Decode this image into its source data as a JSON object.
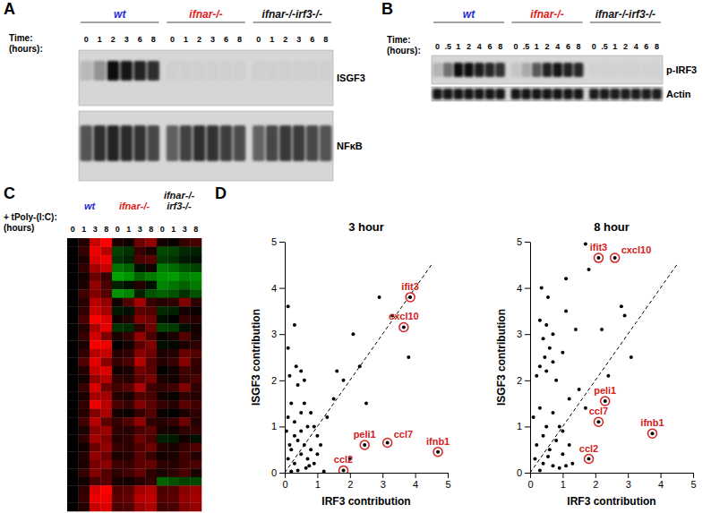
{
  "chart_data": [
    {
      "type": "gel",
      "panel": "A",
      "time_label": [
        "Time:",
        "(hours):"
      ],
      "genotypes": [
        {
          "name": "wt",
          "color": "#2a2ad8"
        },
        {
          "name": "ifnar-/-",
          "color": "#e02020"
        },
        {
          "name": "ifnar-/-irf3-/-",
          "color": "#111111"
        }
      ],
      "times": [
        0,
        1,
        2,
        3,
        6,
        8
      ],
      "blots": [
        {
          "name": "ISGF3",
          "values": [
            0.12,
            0.28,
            0.85,
            0.8,
            0.75,
            0.7,
            0.03,
            0.03,
            0.03,
            0.03,
            0.03,
            0.03,
            0.03,
            0.03,
            0.03,
            0.03,
            0.03,
            0.03
          ]
        },
        {
          "name": "NFκB",
          "values": [
            0.55,
            0.7,
            0.75,
            0.72,
            0.68,
            0.6,
            0.5,
            0.62,
            0.7,
            0.68,
            0.64,
            0.58,
            0.48,
            0.6,
            0.66,
            0.65,
            0.6,
            0.55
          ]
        }
      ]
    },
    {
      "type": "gel",
      "panel": "B",
      "time_label": [
        "Time:",
        "(hours):"
      ],
      "genotypes": [
        {
          "name": "wt",
          "color": "#2a2ad8"
        },
        {
          "name": "ifnar-/-",
          "color": "#e02020"
        },
        {
          "name": "ifnar-/-irf3-/-",
          "color": "#111111"
        }
      ],
      "times": [
        0,
        {
          "value": 0.5,
          "label": ".5"
        },
        1,
        2,
        4,
        6,
        8
      ],
      "blots": [
        {
          "name": "p-IRF3",
          "values": [
            0.15,
            0.45,
            0.9,
            0.88,
            0.82,
            0.78,
            0.72,
            0.08,
            0.2,
            0.55,
            0.8,
            0.85,
            0.8,
            0.78,
            0.02,
            0.02,
            0.02,
            0.02,
            0.02,
            0.02,
            0.02
          ]
        },
        {
          "name": "Actin",
          "values": [
            0.85,
            0.86,
            0.84,
            0.85,
            0.86,
            0.84,
            0.85,
            0.84,
            0.85,
            0.86,
            0.85,
            0.84,
            0.85,
            0.86,
            0.82,
            0.83,
            0.82,
            0.81,
            0.82,
            0.83,
            0.82
          ]
        }
      ]
    },
    {
      "type": "heatmap",
      "panel": "C",
      "treatment_label": [
        "+ tPoly-(I:C):",
        "(hours)"
      ],
      "genotypes": [
        {
          "name": [
            "wt"
          ],
          "color": "#2a2ad8"
        },
        {
          "name": [
            "ifnar-/-"
          ],
          "color": "#e02020"
        },
        {
          "name": [
            "ifnar-/-",
            "irf3-/-"
          ],
          "color": "#111111"
        }
      ],
      "times": [
        0,
        1,
        3,
        8
      ],
      "cells": [
        [
          0,
          0.4,
          2.2,
          2.8,
          0.3,
          0.2,
          1.2,
          1.6,
          0.2,
          0.1,
          0.6,
          0.8
        ],
        [
          0,
          0.6,
          2.6,
          2.0,
          -0.8,
          -0.6,
          0.6,
          0.3,
          -0.9,
          -0.8,
          -0.5,
          -0.4
        ],
        [
          0,
          0.3,
          2.4,
          2.6,
          -0.6,
          -0.4,
          0.8,
          1.0,
          -0.7,
          -0.6,
          -0.3,
          -0.2
        ],
        [
          0,
          0.5,
          1.8,
          2.2,
          -1.4,
          -1.2,
          -0.2,
          0.2,
          -1.5,
          -1.3,
          -1.0,
          -0.8
        ],
        [
          0,
          0.2,
          1.2,
          0.6,
          -2.0,
          -1.8,
          -1.2,
          -1.5,
          -1.8,
          -1.9,
          -1.6,
          -1.7
        ],
        [
          0,
          0.3,
          1.6,
          0.8,
          -0.4,
          -0.2,
          0.4,
          -0.2,
          -1.6,
          -1.4,
          -1.2,
          -1.5
        ],
        [
          0,
          0.7,
          1.4,
          0.9,
          -1.8,
          -1.6,
          -0.4,
          -1.0,
          -1.2,
          -1.0,
          -0.6,
          -1.0
        ],
        [
          0,
          0.4,
          2.0,
          1.6,
          0.2,
          0.9,
          1.8,
          0.6,
          0.4,
          0.5,
          1.4,
          0.5
        ],
        [
          0,
          0.5,
          2.2,
          1.8,
          -0.3,
          -0.2,
          1.0,
          0.9,
          -0.5,
          -0.4,
          0.2,
          0.1
        ],
        [
          0,
          0.8,
          2.8,
          2.4,
          0.2,
          0.4,
          1.4,
          1.2,
          -0.2,
          0.0,
          0.6,
          0.4
        ],
        [
          0,
          0.4,
          1.9,
          2.5,
          -0.6,
          -0.5,
          0.5,
          1.2,
          -0.8,
          -0.7,
          -0.2,
          0.2
        ],
        [
          0,
          0.6,
          2.3,
          1.4,
          0.3,
          0.6,
          1.6,
          0.8,
          0.1,
          0.3,
          0.9,
          0.3
        ],
        [
          0,
          0.3,
          2.7,
          2.6,
          0.0,
          0.2,
          1.0,
          1.4,
          -0.2,
          -0.1,
          0.3,
          0.5
        ],
        [
          0,
          0.5,
          2.0,
          2.2,
          0.4,
          0.5,
          1.5,
          1.2,
          0.3,
          0.4,
          1.1,
          0.9
        ],
        [
          0,
          0.9,
          2.5,
          1.5,
          0.6,
          0.8,
          2.0,
          0.9,
          0.4,
          0.6,
          1.5,
          0.6
        ],
        [
          0,
          0.4,
          2.2,
          2.4,
          0.2,
          0.3,
          1.2,
          1.0,
          0.0,
          0.2,
          0.7,
          0.5
        ],
        [
          0,
          0.2,
          1.6,
          2.0,
          0.5,
          0.4,
          1.0,
          1.3,
          0.3,
          0.2,
          0.6,
          0.8
        ],
        [
          0,
          0.6,
          2.4,
          1.2,
          0.7,
          1.0,
          1.9,
          0.7,
          0.5,
          0.7,
          1.4,
          0.5
        ],
        [
          0,
          0.3,
          1.8,
          1.8,
          0.4,
          0.3,
          0.9,
          0.8,
          0.2,
          0.1,
          0.5,
          0.4
        ],
        [
          0,
          0.5,
          2.6,
          2.0,
          0.8,
          0.6,
          1.4,
          1.0,
          0.6,
          0.4,
          1.0,
          0.7
        ],
        [
          0,
          0.4,
          1.4,
          1.9,
          0.2,
          0.1,
          0.6,
          0.9,
          0.1,
          0.0,
          0.3,
          0.5
        ],
        [
          0,
          0.7,
          2.0,
          1.0,
          0.6,
          0.9,
          1.6,
          0.5,
          0.4,
          0.6,
          1.2,
          0.4
        ],
        [
          0,
          0.3,
          1.5,
          1.7,
          0.5,
          0.4,
          0.8,
          1.0,
          0.3,
          0.2,
          0.5,
          0.6
        ],
        [
          0,
          0.5,
          1.8,
          1.4,
          0.4,
          0.5,
          1.2,
          0.8,
          -0.4,
          -0.3,
          0.2,
          -0.2
        ],
        [
          0,
          0.2,
          1.2,
          1.6,
          0.6,
          0.5,
          0.9,
          1.2,
          0.4,
          0.3,
          0.6,
          0.9
        ],
        [
          0,
          0.4,
          1.6,
          1.2,
          0.3,
          0.4,
          1.0,
          0.6,
          0.2,
          0.3,
          0.7,
          0.4
        ],
        [
          0,
          0.3,
          1.3,
          1.5,
          0.7,
          0.6,
          1.0,
          1.1,
          0.5,
          0.4,
          0.7,
          0.8
        ],
        [
          0,
          0.6,
          1.4,
          0.9,
          0.5,
          0.7,
          1.1,
          0.5,
          0.3,
          0.5,
          0.8,
          0.3
        ],
        [
          0,
          0.2,
          0.8,
          1.0,
          0.3,
          0.2,
          0.4,
          0.6,
          -1.2,
          -1.0,
          -0.8,
          -0.9
        ],
        [
          0,
          0.5,
          2.4,
          2.8,
          0.9,
          1.0,
          1.8,
          2.0,
          0.8,
          0.9,
          1.5,
          1.7
        ],
        [
          0,
          0.6,
          2.6,
          2.6,
          1.0,
          1.1,
          2.0,
          2.1,
          0.9,
          1.0,
          1.6,
          1.8
        ],
        [
          0,
          0.4,
          2.2,
          2.4,
          0.8,
          0.9,
          1.7,
          1.9,
          0.7,
          0.8,
          1.4,
          1.6
        ]
      ]
    },
    {
      "type": "scatter",
      "panel": "D",
      "title": "3 hour",
      "x_label": "IRF3 contribution",
      "y_label": "ISGF3 contribution",
      "xlim": [
        0,
        5
      ],
      "ylim": [
        0,
        5
      ],
      "xticks": [
        0,
        1,
        2,
        3,
        4,
        5
      ],
      "yticks": [
        0,
        1,
        2,
        3,
        4,
        5
      ],
      "marker": "circle",
      "color": "#000000",
      "line_style": "dashed",
      "diagonal": [
        0,
        4.5
      ],
      "x": [
        0.1,
        0.1,
        0.3,
        0.35,
        0.15,
        0.5,
        0.6,
        0.4,
        0.2,
        0.1,
        0.3,
        0.05,
        0.6,
        0.5,
        0.7,
        0.8,
        0.4,
        0.2,
        0.1,
        0.3,
        0.5,
        0.6,
        0.7,
        0.8,
        0.9,
        1.0,
        1.1,
        0.9,
        1.3,
        1.5,
        1.6,
        1.8,
        2.1,
        2.3,
        2.5,
        3.3,
        2.9,
        3.8,
        2.0,
        1.2,
        0.4,
        0.65,
        0.2,
        0.75,
        1.0,
        0.5,
        0.3,
        0.15,
        3.85,
        3.65,
        2.45,
        3.15,
        1.8,
        4.7
      ],
      "values": [
        3.6,
        2.7,
        3.2,
        2.3,
        2.1,
        2.2,
        2.0,
        1.9,
        1.5,
        1.2,
        1.1,
        0.9,
        1.5,
        1.3,
        1.0,
        1.3,
        0.7,
        0.5,
        0.3,
        0.2,
        0.4,
        0.6,
        0.3,
        0.5,
        0.2,
        0.8,
        0.6,
        1.0,
        1.2,
        1.6,
        2.2,
        2.0,
        3.0,
        2.3,
        1.5,
        3.4,
        3.8,
        2.5,
        0.3,
        0.03,
        0.05,
        0.1,
        0.03,
        0.15,
        0.4,
        0.9,
        0.8,
        0.6,
        3.8,
        3.15,
        0.6,
        0.65,
        0.05,
        0.45
      ],
      "point_labels": [
        null,
        null,
        null,
        null,
        null,
        null,
        null,
        null,
        null,
        null,
        null,
        null,
        null,
        null,
        null,
        null,
        null,
        null,
        null,
        null,
        null,
        null,
        null,
        null,
        null,
        null,
        null,
        null,
        null,
        null,
        null,
        null,
        null,
        null,
        null,
        null,
        null,
        null,
        null,
        null,
        null,
        null,
        null,
        null,
        null,
        null,
        null,
        null,
        "ifit3",
        "cxcl10",
        "peli1",
        "ccl7",
        "ccl2",
        "ifnb1"
      ]
    },
    {
      "type": "scatter",
      "title": "8 hour",
      "x_label": "IRF3 contribution",
      "y_label": "ISGF3 contribution",
      "xlim": [
        0,
        5
      ],
      "ylim": [
        0,
        5
      ],
      "xticks": [
        0,
        1,
        2,
        3,
        4,
        5
      ],
      "yticks": [
        0,
        1,
        2,
        3,
        4,
        5
      ],
      "marker": "circle",
      "color": "#000000",
      "line_style": "dashed",
      "diagonal": [
        0,
        4.5
      ],
      "x": [
        1.7,
        1.8,
        0.35,
        0.55,
        1.1,
        0.3,
        0.5,
        0.7,
        0.4,
        0.6,
        0.45,
        0.3,
        0.5,
        0.7,
        0.8,
        0.2,
        1.0,
        1.1,
        1.4,
        2.2,
        2.8,
        2.9,
        3.1,
        1.5,
        0.3,
        0.1,
        0.5,
        0.7,
        0.9,
        0.4,
        0.2,
        0.6,
        0.8,
        1.0,
        1.2,
        0.15,
        0.4,
        0.7,
        0.9,
        1.1,
        1.3,
        0.3,
        0.55,
        1.0,
        1.2,
        1.7,
        2.4,
        2.1,
        2.6,
        2.3,
        2.1,
        1.8,
        3.75
      ],
      "values": [
        4.95,
        4.4,
        4.0,
        3.8,
        4.2,
        3.3,
        3.2,
        3.0,
        2.9,
        2.7,
        2.5,
        2.3,
        2.2,
        2.4,
        2.0,
        2.1,
        2.6,
        3.5,
        3.1,
        3.1,
        3.6,
        3.4,
        2.5,
        1.8,
        1.4,
        1.2,
        1.0,
        1.3,
        1.0,
        0.8,
        0.6,
        0.5,
        0.7,
        0.4,
        0.6,
        0.3,
        0.2,
        0.15,
        0.1,
        0.15,
        0.2,
        0.05,
        0.35,
        0.9,
        1.6,
        1.4,
        2.1,
        4.65,
        4.65,
        1.55,
        1.1,
        0.3,
        0.85
      ],
      "point_labels": [
        null,
        null,
        null,
        null,
        null,
        null,
        null,
        null,
        null,
        null,
        null,
        null,
        null,
        null,
        null,
        null,
        null,
        null,
        null,
        null,
        null,
        null,
        null,
        null,
        null,
        null,
        null,
        null,
        null,
        null,
        null,
        null,
        null,
        null,
        null,
        null,
        null,
        null,
        null,
        null,
        null,
        null,
        null,
        null,
        null,
        null,
        null,
        "ifit3",
        "cxcl10",
        "peli1",
        "ccl7",
        "ccl2",
        "ifnb1"
      ]
    }
  ]
}
